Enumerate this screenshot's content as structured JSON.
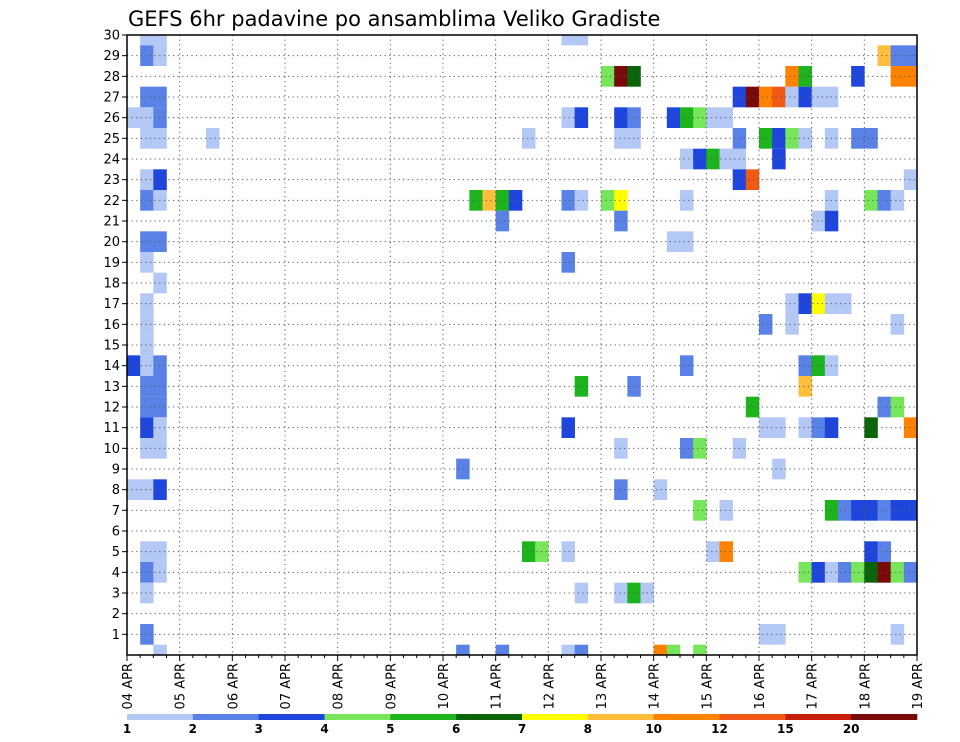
{
  "chart_data": {
    "type": "heatmap",
    "title": "GEFS 6hr padavine po ansamblima Veliko Gradiste",
    "x_labels": [
      "04 APR",
      "05 APR",
      "06 APR",
      "07 APR",
      "08 APR",
      "09 APR",
      "10 APR",
      "11 APR",
      "12 APR",
      "13 APR",
      "14 APR",
      "15 APR",
      "16 APR",
      "17 APR",
      "18 APR",
      "19 APR"
    ],
    "y_labels": [
      "1",
      "2",
      "3",
      "4",
      "5",
      "6",
      "7",
      "8",
      "9",
      "10",
      "11",
      "12",
      "13",
      "14",
      "15",
      "16",
      "17",
      "18",
      "19",
      "20",
      "21",
      "22",
      "23",
      "24",
      "25",
      "26",
      "27",
      "28",
      "29",
      "30"
    ],
    "y_range": [
      0,
      30
    ],
    "steps_per_day": 4,
    "grid": true,
    "legend": {
      "position": "bottom",
      "labels": [
        "1",
        "2",
        "3",
        "4",
        "5",
        "6",
        "7",
        "8",
        "10",
        "12",
        "15",
        "20"
      ],
      "colors": [
        "#b4c8f5",
        "#5a82e6",
        "#1e46dc",
        "#78e65a",
        "#1eb41e",
        "#0a640a",
        "#ffff00",
        "#ffbe3c",
        "#ff8200",
        "#f05a14",
        "#c81e0a",
        "#780a0a"
      ]
    },
    "cells": [
      {
        "x": 1,
        "y": 30,
        "c": 1
      },
      {
        "x": 2,
        "y": 30,
        "c": 1
      },
      {
        "x": 1,
        "y": 29,
        "c": 2
      },
      {
        "x": 2,
        "y": 29,
        "c": 1
      },
      {
        "x": 1,
        "y": 27,
        "c": 2
      },
      {
        "x": 2,
        "y": 27,
        "c": 2
      },
      {
        "x": 0,
        "y": 26,
        "c": 1
      },
      {
        "x": 1,
        "y": 26,
        "c": 1
      },
      {
        "x": 2,
        "y": 26,
        "c": 2
      },
      {
        "x": 1,
        "y": 25,
        "c": 1
      },
      {
        "x": 2,
        "y": 25,
        "c": 1
      },
      {
        "x": 6,
        "y": 25,
        "c": 1
      },
      {
        "x": 1,
        "y": 23,
        "c": 1
      },
      {
        "x": 2,
        "y": 23,
        "c": 3
      },
      {
        "x": 1,
        "y": 22,
        "c": 2
      },
      {
        "x": 2,
        "y": 22,
        "c": 1
      },
      {
        "x": 1,
        "y": 20,
        "c": 2
      },
      {
        "x": 2,
        "y": 20,
        "c": 2
      },
      {
        "x": 1,
        "y": 19,
        "c": 1
      },
      {
        "x": 2,
        "y": 18,
        "c": 1
      },
      {
        "x": 1,
        "y": 17,
        "c": 1
      },
      {
        "x": 1,
        "y": 16,
        "c": 1
      },
      {
        "x": 1,
        "y": 15,
        "c": 1
      },
      {
        "x": 0,
        "y": 14,
        "c": 3
      },
      {
        "x": 1,
        "y": 14,
        "c": 1
      },
      {
        "x": 2,
        "y": 14,
        "c": 2
      },
      {
        "x": 1,
        "y": 13,
        "c": 2
      },
      {
        "x": 2,
        "y": 13,
        "c": 2
      },
      {
        "x": 1,
        "y": 12,
        "c": 2
      },
      {
        "x": 2,
        "y": 12,
        "c": 2
      },
      {
        "x": 1,
        "y": 11,
        "c": 3
      },
      {
        "x": 2,
        "y": 11,
        "c": 1
      },
      {
        "x": 1,
        "y": 10,
        "c": 1
      },
      {
        "x": 2,
        "y": 10,
        "c": 1
      },
      {
        "x": 0,
        "y": 8,
        "c": 1
      },
      {
        "x": 1,
        "y": 8,
        "c": 1
      },
      {
        "x": 2,
        "y": 8,
        "c": 3
      },
      {
        "x": 1,
        "y": 5,
        "c": 1
      },
      {
        "x": 2,
        "y": 5,
        "c": 1
      },
      {
        "x": 1,
        "y": 4,
        "c": 2
      },
      {
        "x": 2,
        "y": 4,
        "c": 1
      },
      {
        "x": 1,
        "y": 3,
        "c": 1
      },
      {
        "x": 1,
        "y": 1,
        "c": 2
      },
      {
        "x": 2,
        "y": 0,
        "c": 1
      },
      {
        "x": 25,
        "y": 0,
        "c": 2
      },
      {
        "x": 28,
        "y": 0,
        "c": 2
      },
      {
        "x": 33,
        "y": 0,
        "c": 1
      },
      {
        "x": 34,
        "y": 0,
        "c": 2
      },
      {
        "x": 40,
        "y": 0,
        "c": 9
      },
      {
        "x": 41,
        "y": 0,
        "c": 4
      },
      {
        "x": 43,
        "y": 0,
        "c": 4
      },
      {
        "x": 25,
        "y": 9,
        "c": 2
      },
      {
        "x": 28,
        "y": 21,
        "c": 2
      },
      {
        "x": 26,
        "y": 22,
        "c": 5
      },
      {
        "x": 27,
        "y": 22,
        "c": 8
      },
      {
        "x": 28,
        "y": 22,
        "c": 5
      },
      {
        "x": 29,
        "y": 22,
        "c": 3
      },
      {
        "x": 30,
        "y": 5,
        "c": 5
      },
      {
        "x": 31,
        "y": 5,
        "c": 4
      },
      {
        "x": 30,
        "y": 25,
        "c": 1
      },
      {
        "x": 33,
        "y": 30,
        "c": 1
      },
      {
        "x": 34,
        "y": 30,
        "c": 1
      },
      {
        "x": 33,
        "y": 26,
        "c": 1
      },
      {
        "x": 34,
        "y": 26,
        "c": 3
      },
      {
        "x": 33,
        "y": 22,
        "c": 2
      },
      {
        "x": 34,
        "y": 22,
        "c": 1
      },
      {
        "x": 33,
        "y": 19,
        "c": 2
      },
      {
        "x": 34,
        "y": 13,
        "c": 5
      },
      {
        "x": 33,
        "y": 11,
        "c": 3
      },
      {
        "x": 33,
        "y": 5,
        "c": 1
      },
      {
        "x": 34,
        "y": 3,
        "c": 1
      },
      {
        "x": 36,
        "y": 28,
        "c": 4
      },
      {
        "x": 37,
        "y": 28,
        "c": 12
      },
      {
        "x": 38,
        "y": 28,
        "c": 6
      },
      {
        "x": 36,
        "y": 22,
        "c": 4
      },
      {
        "x": 37,
        "y": 22,
        "c": 7
      },
      {
        "x": 37,
        "y": 26,
        "c": 3
      },
      {
        "x": 38,
        "y": 26,
        "c": 2
      },
      {
        "x": 37,
        "y": 25,
        "c": 1
      },
      {
        "x": 38,
        "y": 25,
        "c": 1
      },
      {
        "x": 37,
        "y": 21,
        "c": 2
      },
      {
        "x": 38,
        "y": 13,
        "c": 2
      },
      {
        "x": 37,
        "y": 10,
        "c": 1
      },
      {
        "x": 37,
        "y": 8,
        "c": 2
      },
      {
        "x": 37,
        "y": 3,
        "c": 1
      },
      {
        "x": 38,
        "y": 3,
        "c": 5
      },
      {
        "x": 39,
        "y": 3,
        "c": 1
      },
      {
        "x": 40,
        "y": 8,
        "c": 1
      },
      {
        "x": 41,
        "y": 26,
        "c": 3
      },
      {
        "x": 42,
        "y": 26,
        "c": 5
      },
      {
        "x": 43,
        "y": 26,
        "c": 4
      },
      {
        "x": 44,
        "y": 26,
        "c": 1
      },
      {
        "x": 45,
        "y": 26,
        "c": 1
      },
      {
        "x": 42,
        "y": 24,
        "c": 1
      },
      {
        "x": 43,
        "y": 24,
        "c": 3
      },
      {
        "x": 44,
        "y": 24,
        "c": 5
      },
      {
        "x": 45,
        "y": 24,
        "c": 1
      },
      {
        "x": 46,
        "y": 24,
        "c": 1
      },
      {
        "x": 42,
        "y": 22,
        "c": 1
      },
      {
        "x": 41,
        "y": 20,
        "c": 1
      },
      {
        "x": 42,
        "y": 20,
        "c": 1
      },
      {
        "x": 42,
        "y": 14,
        "c": 2
      },
      {
        "x": 42,
        "y": 10,
        "c": 2
      },
      {
        "x": 43,
        "y": 10,
        "c": 4
      },
      {
        "x": 43,
        "y": 7,
        "c": 4
      },
      {
        "x": 45,
        "y": 7,
        "c": 1
      },
      {
        "x": 44,
        "y": 5,
        "c": 1
      },
      {
        "x": 45,
        "y": 5,
        "c": 9
      },
      {
        "x": 46,
        "y": 27,
        "c": 3
      },
      {
        "x": 47,
        "y": 27,
        "c": 12
      },
      {
        "x": 48,
        "y": 27,
        "c": 9
      },
      {
        "x": 49,
        "y": 27,
        "c": 10
      },
      {
        "x": 50,
        "y": 27,
        "c": 1
      },
      {
        "x": 51,
        "y": 27,
        "c": 3
      },
      {
        "x": 52,
        "y": 27,
        "c": 1
      },
      {
        "x": 53,
        "y": 27,
        "c": 1
      },
      {
        "x": 46,
        "y": 25,
        "c": 2
      },
      {
        "x": 48,
        "y": 25,
        "c": 5
      },
      {
        "x": 49,
        "y": 25,
        "c": 3
      },
      {
        "x": 50,
        "y": 25,
        "c": 4
      },
      {
        "x": 51,
        "y": 25,
        "c": 1
      },
      {
        "x": 53,
        "y": 25,
        "c": 1
      },
      {
        "x": 55,
        "y": 25,
        "c": 2
      },
      {
        "x": 56,
        "y": 25,
        "c": 2
      },
      {
        "x": 46,
        "y": 23,
        "c": 3
      },
      {
        "x": 47,
        "y": 23,
        "c": 10
      },
      {
        "x": 49,
        "y": 24,
        "c": 3
      },
      {
        "x": 46,
        "y": 10,
        "c": 1
      },
      {
        "x": 47,
        "y": 12,
        "c": 5
      },
      {
        "x": 48,
        "y": 16,
        "c": 2
      },
      {
        "x": 49,
        "y": 9,
        "c": 1
      },
      {
        "x": 48,
        "y": 1,
        "c": 1
      },
      {
        "x": 49,
        "y": 1,
        "c": 1
      },
      {
        "x": 48,
        "y": 11,
        "c": 1
      },
      {
        "x": 49,
        "y": 11,
        "c": 1
      },
      {
        "x": 50,
        "y": 28,
        "c": 9
      },
      {
        "x": 51,
        "y": 28,
        "c": 5
      },
      {
        "x": 50,
        "y": 17,
        "c": 1
      },
      {
        "x": 51,
        "y": 17,
        "c": 3
      },
      {
        "x": 52,
        "y": 17,
        "c": 7
      },
      {
        "x": 53,
        "y": 17,
        "c": 1
      },
      {
        "x": 54,
        "y": 17,
        "c": 1
      },
      {
        "x": 50,
        "y": 16,
        "c": 1
      },
      {
        "x": 51,
        "y": 14,
        "c": 2
      },
      {
        "x": 52,
        "y": 14,
        "c": 5
      },
      {
        "x": 53,
        "y": 14,
        "c": 1
      },
      {
        "x": 51,
        "y": 13,
        "c": 8
      },
      {
        "x": 51,
        "y": 11,
        "c": 1
      },
      {
        "x": 52,
        "y": 11,
        "c": 2
      },
      {
        "x": 53,
        "y": 11,
        "c": 3
      },
      {
        "x": 52,
        "y": 21,
        "c": 1
      },
      {
        "x": 53,
        "y": 21,
        "c": 3
      },
      {
        "x": 53,
        "y": 22,
        "c": 1
      },
      {
        "x": 51,
        "y": 4,
        "c": 4
      },
      {
        "x": 52,
        "y": 4,
        "c": 3
      },
      {
        "x": 53,
        "y": 4,
        "c": 1
      },
      {
        "x": 54,
        "y": 4,
        "c": 2
      },
      {
        "x": 55,
        "y": 4,
        "c": 4
      },
      {
        "x": 56,
        "y": 4,
        "c": 6
      },
      {
        "x": 57,
        "y": 4,
        "c": 12
      },
      {
        "x": 58,
        "y": 4,
        "c": 4
      },
      {
        "x": 59,
        "y": 4,
        "c": 2
      },
      {
        "x": 56,
        "y": 5,
        "c": 3
      },
      {
        "x": 57,
        "y": 5,
        "c": 2
      },
      {
        "x": 53,
        "y": 7,
        "c": 5
      },
      {
        "x": 54,
        "y": 7,
        "c": 2
      },
      {
        "x": 55,
        "y": 7,
        "c": 3
      },
      {
        "x": 56,
        "y": 7,
        "c": 3
      },
      {
        "x": 57,
        "y": 7,
        "c": 2
      },
      {
        "x": 58,
        "y": 7,
        "c": 3
      },
      {
        "x": 59,
        "y": 7,
        "c": 3
      },
      {
        "x": 56,
        "y": 11,
        "c": 6
      },
      {
        "x": 59,
        "y": 11,
        "c": 9
      },
      {
        "x": 57,
        "y": 12,
        "c": 2
      },
      {
        "x": 58,
        "y": 12,
        "c": 4
      },
      {
        "x": 55,
        "y": 28,
        "c": 3
      },
      {
        "x": 58,
        "y": 28,
        "c": 9
      },
      {
        "x": 59,
        "y": 28,
        "c": 9
      },
      {
        "x": 57,
        "y": 29,
        "c": 8
      },
      {
        "x": 58,
        "y": 29,
        "c": 2
      },
      {
        "x": 59,
        "y": 29,
        "c": 2
      },
      {
        "x": 56,
        "y": 22,
        "c": 4
      },
      {
        "x": 57,
        "y": 22,
        "c": 2
      },
      {
        "x": 58,
        "y": 22,
        "c": 1
      },
      {
        "x": 59,
        "y": 23,
        "c": 1
      },
      {
        "x": 58,
        "y": 16,
        "c": 1
      },
      {
        "x": 58,
        "y": 1,
        "c": 1
      }
    ]
  }
}
